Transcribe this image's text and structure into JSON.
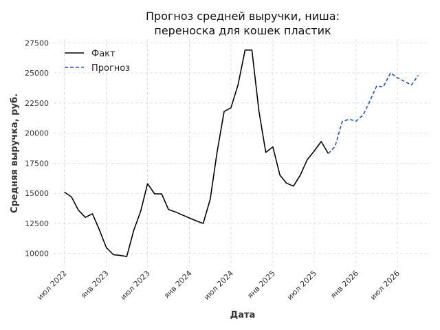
{
  "chart_data": {
    "type": "line",
    "title_line1": "Прогноз средней выручки, ниша:",
    "title_line2": "переноска для кошек пластик",
    "xlabel": "Дата",
    "ylabel": "Средняя выручка, руб.",
    "grid": true,
    "legend_position": "top-left",
    "ylim": [
      8900,
      27800
    ],
    "xlim": [
      "2022-05-15",
      "2026-11-20"
    ],
    "y_ticks": [
      10000,
      12500,
      15000,
      17500,
      20000,
      22500,
      25000,
      27500
    ],
    "y_tick_labels": [
      "10000",
      "12500",
      "15000",
      "17500",
      "20000",
      "22500",
      "25000",
      "27500"
    ],
    "x_ticks": [
      "2022-07-01",
      "2023-01-01",
      "2023-07-01",
      "2024-01-01",
      "2024-07-01",
      "2025-01-01",
      "2025-07-01",
      "2026-01-01",
      "2026-07-01"
    ],
    "x_tick_labels": [
      "июл 2022",
      "янв 2023",
      "июл 2023",
      "янв 2024",
      "июл 2024",
      "янв 2025",
      "июл 2025",
      "янв 2026",
      "июл 2026"
    ],
    "series": [
      {
        "name": "Факт",
        "color": "#000000",
        "style": "solid",
        "x": [
          "2022-07-01",
          "2022-08-01",
          "2022-09-01",
          "2022-10-01",
          "2022-11-01",
          "2022-12-01",
          "2023-01-01",
          "2023-02-01",
          "2023-03-01",
          "2023-04-01",
          "2023-05-01",
          "2023-06-01",
          "2023-07-01",
          "2023-08-01",
          "2023-09-01",
          "2023-10-01",
          "2023-11-01",
          "2023-12-01",
          "2024-01-01",
          "2024-02-01",
          "2024-03-01",
          "2024-04-01",
          "2024-05-01",
          "2024-06-01",
          "2024-07-01",
          "2024-08-01",
          "2024-09-01",
          "2024-10-01",
          "2024-11-01",
          "2024-12-01",
          "2025-01-01",
          "2025-02-01",
          "2025-03-01",
          "2025-04-01",
          "2025-05-01",
          "2025-06-01",
          "2025-07-01",
          "2025-08-01",
          "2025-09-01"
        ],
        "y": [
          15100,
          14700,
          13600,
          13000,
          13300,
          12000,
          10500,
          9900,
          9850,
          9750,
          11900,
          13500,
          15800,
          14950,
          14950,
          13650,
          13450,
          13200,
          12950,
          12700,
          12500,
          14500,
          18400,
          21800,
          22100,
          24000,
          26900,
          26900,
          21800,
          18400,
          18850,
          16500,
          15850,
          15600,
          16500,
          17800,
          18500,
          19300,
          18300
        ]
      },
      {
        "name": "Прогноз",
        "color": "#1f4fd1",
        "style": "dashed",
        "x": [
          "2025-09-01",
          "2025-10-01",
          "2025-11-01",
          "2025-12-01",
          "2026-01-01",
          "2026-02-01",
          "2026-03-01",
          "2026-04-01",
          "2026-05-01",
          "2026-06-01",
          "2026-07-01",
          "2026-08-01",
          "2026-09-01",
          "2026-10-01"
        ],
        "y": [
          18300,
          18900,
          20950,
          21150,
          21000,
          21500,
          22600,
          23900,
          23850,
          25000,
          24600,
          24300,
          24000,
          24800
        ]
      }
    ]
  }
}
